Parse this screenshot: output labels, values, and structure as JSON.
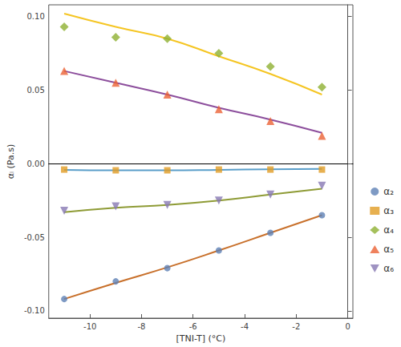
{
  "chart_data": {
    "type": "scatter",
    "x_label": "[TNI-T] (°C)",
    "y_label": "αᵢ (Pa.s)",
    "xlim": [
      -11.6,
      0.2
    ],
    "xticks": [
      -10,
      -8,
      -6,
      -4,
      -2,
      0
    ],
    "ylim": [
      -0.105,
      0.108
    ],
    "yticks": [
      {
        "value": -0.1,
        "label": "-0.10"
      },
      -0.05,
      {
        "value": 0,
        "label": "0.00"
      },
      0.05,
      {
        "value": 0.1,
        "label": "0.10"
      }
    ],
    "grid": false,
    "legend": "right",
    "x": [
      -11,
      -9,
      -7,
      -5,
      -3,
      -1
    ],
    "series": [
      {
        "name": "α₂",
        "color": "#5e81b5",
        "marker": "circle",
        "values": [
          -0.092,
          -0.08,
          -0.071,
          -0.059,
          -0.047,
          -0.035
        ],
        "fit": {
          "color": "#c8702b",
          "values": [
            -0.092,
            -0.081,
            -0.0705,
            -0.059,
            -0.047,
            -0.035
          ]
        }
      },
      {
        "name": "α₃",
        "color": "#e19c24",
        "marker": "square",
        "values": [
          -0.004,
          -0.0045,
          -0.0045,
          -0.004,
          -0.004,
          -0.004
        ],
        "fit": {
          "color": "#5a9ec9",
          "values": [
            -0.0042,
            -0.0045,
            -0.0045,
            -0.0042,
            -0.0038,
            -0.0036
          ]
        }
      },
      {
        "name": "α₄",
        "color": "#8fb032",
        "marker": "diamond",
        "values": [
          0.093,
          0.086,
          0.085,
          0.075,
          0.066,
          0.052
        ],
        "fit": {
          "color": "#f5c522",
          "values": [
            0.102,
            0.093,
            0.085,
            0.073,
            0.061,
            0.047
          ]
        }
      },
      {
        "name": "α₅",
        "color": "#eb6235",
        "marker": "triangle",
        "values": [
          0.063,
          0.055,
          0.047,
          0.037,
          0.029,
          0.019
        ],
        "fit": {
          "color": "#8c4e9c",
          "values": [
            0.063,
            0.055,
            0.047,
            0.038,
            0.03,
            0.021
          ]
        }
      },
      {
        "name": "α₆",
        "color": "#8778b3",
        "marker": "triangle-down",
        "values": [
          -0.032,
          -0.029,
          -0.028,
          -0.025,
          -0.021,
          -0.015
        ],
        "fit": {
          "color": "#8e9b35",
          "values": [
            -0.033,
            -0.03,
            -0.028,
            -0.025,
            -0.021,
            -0.017
          ]
        }
      }
    ]
  }
}
